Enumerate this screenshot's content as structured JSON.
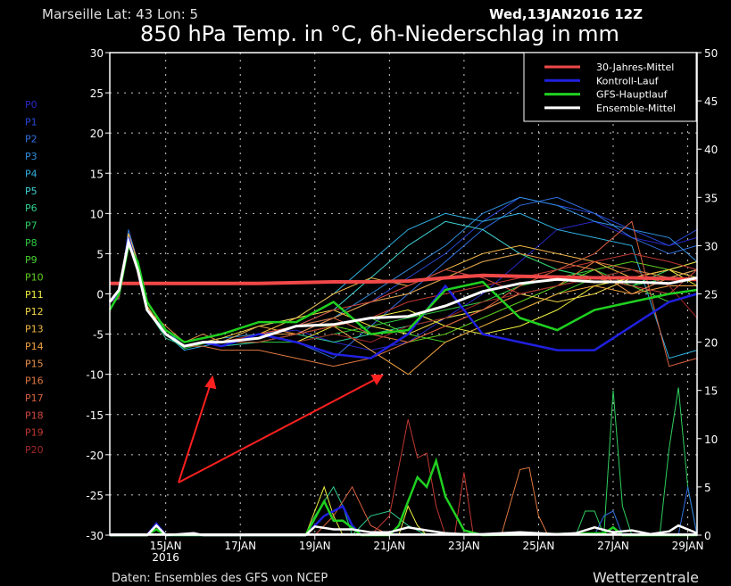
{
  "header": {
    "location": "Marseille  Lat: 43 Lon: 5",
    "run": "Wed,13JAN2016 12Z",
    "title": "850 hPa Temp. in °C, 6h-Niederschlag in mm"
  },
  "footer": {
    "source": "Daten: Ensembles des GFS von NCEP",
    "brand": "Wetterzentrale"
  },
  "legend": [
    {
      "label": "30-Jahres-Mittel",
      "color": "#f04848"
    },
    {
      "label": "Kontroll-Lauf",
      "color": "#2020e0"
    },
    {
      "label": "GFS-Hauptlauf",
      "color": "#20d020"
    },
    {
      "label": "Ensemble-Mittel",
      "color": "#ffffff"
    }
  ],
  "chart_data": {
    "type": "line",
    "title": "850 hPa Temp. in °C, 6h-Niederschlag in mm",
    "x_unit": "hours after 13JAN2016 12Z",
    "xlim": [
      0,
      378
    ],
    "ylim_left": [
      -30,
      30
    ],
    "ylim_right": [
      0,
      50
    ],
    "yticks_left": [
      -30,
      -25,
      -20,
      -15,
      -10,
      -5,
      0,
      5,
      10,
      15,
      20,
      25,
      30
    ],
    "yticks_right": [
      0,
      5,
      10,
      15,
      20,
      25,
      30,
      35,
      40,
      45,
      50
    ],
    "xticks": [
      {
        "x": 36,
        "label": "15JAN",
        "sub": "2016"
      },
      {
        "x": 84,
        "label": "17JAN"
      },
      {
        "x": 132,
        "label": "19JAN"
      },
      {
        "x": 180,
        "label": "21JAN"
      },
      {
        "x": 228,
        "label": "23JAN"
      },
      {
        "x": 276,
        "label": "25JAN"
      },
      {
        "x": 324,
        "label": "27JAN"
      },
      {
        "x": 372,
        "label": "29JAN"
      }
    ],
    "grid": true,
    "legend_position": "top-right",
    "x": [
      0,
      6,
      12,
      18,
      24,
      36,
      48,
      60,
      72,
      96,
      120,
      144,
      168,
      192,
      216,
      240,
      264,
      288,
      312,
      336,
      360,
      378
    ],
    "members": [
      {
        "name": "P0",
        "color": "#2828c8",
        "values": [
          -1,
          -0.5,
          7,
          3.5,
          -2,
          -5,
          -6.5,
          -6,
          -6,
          -5,
          -4.5,
          -6,
          -7,
          -6,
          -3,
          0,
          4,
          8,
          9,
          7,
          6,
          7
        ]
      },
      {
        "name": "P1",
        "color": "#2848d8",
        "values": [
          -1,
          -0.3,
          7.5,
          4,
          -2,
          -5,
          -6.5,
          -6,
          -6.5,
          -6,
          -5,
          -3,
          -1,
          2,
          5,
          9,
          12,
          11,
          10,
          8,
          6,
          8
        ]
      },
      {
        "name": "P2",
        "color": "#3070e0",
        "values": [
          -1,
          -0.5,
          8,
          4,
          -1.5,
          -5,
          -6.5,
          -6.2,
          -6,
          -5,
          -6,
          -8,
          -4,
          0,
          4,
          8,
          11,
          12,
          10,
          7,
          5,
          6
        ]
      },
      {
        "name": "P3",
        "color": "#3090e0",
        "values": [
          -1,
          -0.5,
          7,
          3.5,
          -2,
          -4.5,
          -6.5,
          -6,
          -5.5,
          -5,
          -4,
          -3,
          0,
          3,
          6,
          10,
          12,
          11,
          9,
          8,
          7,
          4
        ]
      },
      {
        "name": "P4",
        "color": "#30b0e0",
        "values": [
          -1,
          -0.6,
          7,
          3,
          -2,
          -5,
          -7,
          -6.5,
          -6,
          -4,
          -3,
          0,
          4,
          8,
          10,
          9,
          10,
          8,
          7,
          6,
          -8,
          -7
        ]
      },
      {
        "name": "P5",
        "color": "#40d0d0",
        "values": [
          -1,
          -0.5,
          6.5,
          3,
          -2,
          -5,
          -6.5,
          -6,
          -6,
          -5,
          -4,
          -2,
          2,
          6,
          9,
          8,
          5,
          3,
          2,
          1,
          2,
          3
        ]
      },
      {
        "name": "P6",
        "color": "#30d090",
        "values": [
          -1,
          -0.5,
          6.8,
          3,
          -2,
          -5.5,
          -6.5,
          -6,
          -6.5,
          -6,
          -5,
          -6,
          -5,
          -4,
          -3,
          -2,
          0,
          1,
          2,
          3,
          2,
          3
        ]
      },
      {
        "name": "P7",
        "color": "#30d060",
        "values": [
          -1,
          -0.5,
          7,
          3.5,
          -2,
          -5,
          -6.5,
          -6,
          -6,
          -5,
          -4,
          -3,
          -1,
          0,
          2,
          4,
          5,
          3,
          2,
          1,
          3,
          4
        ]
      },
      {
        "name": "P8",
        "color": "#30c840",
        "values": [
          -1,
          -0.5,
          6.5,
          3,
          -2,
          -5,
          -6.8,
          -6.2,
          -6,
          -6,
          -6,
          -5,
          -4,
          -3,
          -2,
          -1,
          1,
          2,
          3,
          1,
          2,
          2
        ]
      },
      {
        "name": "P9",
        "color": "#48d030",
        "values": [
          -1,
          -0.5,
          7,
          3,
          -2,
          -5,
          -6.5,
          -6,
          -6,
          -5,
          -4,
          -4,
          -3,
          -5,
          -6,
          -4,
          -2,
          0,
          2,
          1,
          -1,
          0
        ]
      },
      {
        "name": "P10",
        "color": "#60d020",
        "values": [
          -1,
          -0.5,
          7,
          3.5,
          -2,
          -5,
          -6.5,
          -6,
          -6,
          -6,
          -5,
          -4,
          -5,
          -6,
          -5,
          -3,
          -1,
          1,
          3,
          4,
          3,
          2
        ]
      },
      {
        "name": "P11",
        "color": "#f0f040",
        "values": [
          -1,
          -0.5,
          7,
          3.5,
          -2,
          -5,
          -6.5,
          -6,
          -6,
          -5,
          -6,
          -4,
          -3,
          -2,
          -4,
          -5,
          -4,
          -2,
          1,
          2,
          3,
          1
        ]
      },
      {
        "name": "P12",
        "color": "#f0d848",
        "values": [
          -1,
          -0.5,
          7.5,
          4,
          -1.5,
          -5,
          -6.5,
          -6,
          -5.5,
          -4,
          -3,
          -2,
          -4,
          -5,
          -3,
          -2,
          0,
          -1,
          0,
          2,
          3,
          4
        ]
      },
      {
        "name": "P13",
        "color": "#f0b848",
        "values": [
          -1,
          -0.5,
          7.5,
          4,
          -1.5,
          -5,
          -6.5,
          -6,
          -6,
          -5,
          -3,
          0,
          2,
          1,
          3,
          5,
          6,
          5,
          4,
          2,
          3,
          2
        ]
      },
      {
        "name": "P14",
        "color": "#f0a040",
        "values": [
          -1,
          -0.5,
          7,
          3.5,
          -2,
          -5,
          -6.5,
          -6,
          -6,
          -4,
          -5,
          -4,
          -7,
          -10,
          -6,
          -4,
          -2,
          0,
          1,
          0,
          1,
          1
        ]
      },
      {
        "name": "P15",
        "color": "#e89048",
        "values": [
          -1,
          -0.5,
          7,
          3.5,
          -2,
          -4,
          -6,
          -5,
          -6,
          -5,
          -5,
          -3,
          -1,
          0,
          2,
          4,
          5,
          4,
          3,
          0,
          2,
          3
        ]
      },
      {
        "name": "P16",
        "color": "#e07840",
        "values": [
          -1,
          -0.5,
          7,
          3.5,
          -2,
          -5,
          -6.5,
          -6.5,
          -7,
          -7,
          -8,
          -9,
          -8,
          -6,
          -4,
          -2,
          0,
          1,
          4,
          3,
          2,
          2
        ]
      },
      {
        "name": "P17",
        "color": "#d86040",
        "values": [
          -1,
          -0.5,
          7,
          3.5,
          -2,
          -5,
          -6.5,
          -6,
          -6,
          -5,
          -4,
          -3,
          -5,
          -6,
          -4,
          -2,
          1,
          3,
          5,
          9,
          -9,
          -8
        ]
      },
      {
        "name": "P18",
        "color": "#d04840",
        "values": [
          -1,
          -0.5,
          6.5,
          3,
          -2,
          -5,
          -6.5,
          -6,
          -6,
          -5,
          -4,
          -2,
          -1,
          1,
          3,
          2,
          0,
          1,
          2,
          1,
          0,
          3
        ]
      },
      {
        "name": "P19",
        "color": "#c03830",
        "values": [
          -1,
          -0.5,
          6.5,
          3,
          -2,
          -5,
          -6.5,
          -6,
          -6,
          -6,
          -5,
          -4,
          -3,
          -1,
          0,
          1,
          2,
          3,
          4,
          5,
          4,
          3
        ]
      },
      {
        "name": "P20",
        "color": "#a02828",
        "values": [
          -1,
          -0.5,
          6.5,
          3,
          -2,
          -5,
          -6.5,
          -6,
          -6,
          -5,
          -6,
          -5,
          -6,
          -4,
          -3,
          -1,
          0,
          1,
          2,
          3,
          1,
          -3
        ]
      }
    ],
    "climatology": {
      "name": "30-Jahres-Mittel",
      "values": [
        1.3,
        1.3,
        1.3,
        1.3,
        1.3,
        1.3,
        1.3,
        1.3,
        1.3,
        1.3,
        1.4,
        1.5,
        1.5,
        1.6,
        2.0,
        2.3,
        2.2,
        2.1,
        2.0,
        2.0,
        1.9,
        1.8
      ]
    },
    "control": {
      "name": "Kontroll-Lauf",
      "values": [
        -1,
        0,
        7,
        3,
        -2,
        -5,
        -6.5,
        -6,
        -6.5,
        -5,
        -6,
        -7.5,
        -8,
        -5,
        1,
        -5,
        -6,
        -7,
        -7,
        -4,
        -1,
        0
      ]
    },
    "gfs": {
      "name": "GFS-Hauptlauf",
      "values": [
        -2,
        0,
        6,
        4,
        -1,
        -4.5,
        -6,
        -5.5,
        -5,
        -3.5,
        -3.5,
        -1,
        -5,
        -4.5,
        0.5,
        1.5,
        -3,
        -4.5,
        -2,
        -1,
        0,
        0.5
      ]
    },
    "mean": {
      "name": "Ensemble-Mittel",
      "values": [
        -1,
        0.5,
        6.5,
        3,
        -2,
        -5,
        -6.5,
        -6,
        -6,
        -5.5,
        -4,
        -3.8,
        -3,
        -2.8,
        -1.5,
        0.3,
        1.3,
        1.8,
        1.5,
        1.5,
        1.3,
        2
      ]
    },
    "precip": [
      {
        "name": "P6",
        "color": "#30d090",
        "points": [
          [
            126,
            0
          ],
          [
            132,
            2
          ],
          [
            144,
            5
          ],
          [
            150,
            3
          ],
          [
            156,
            0
          ],
          [
            168,
            2
          ],
          [
            180,
            2.5
          ],
          [
            192,
            1
          ],
          [
            204,
            0
          ]
        ]
      },
      {
        "name": "P11",
        "color": "#f0f040",
        "points": [
          [
            126,
            0
          ],
          [
            138,
            5
          ],
          [
            144,
            2
          ],
          [
            150,
            0
          ],
          [
            186,
            0
          ],
          [
            192,
            3
          ],
          [
            198,
            1
          ],
          [
            204,
            0
          ]
        ]
      },
      {
        "name": "P17",
        "color": "#d86040",
        "points": [
          [
            132,
            0
          ],
          [
            144,
            2
          ],
          [
            156,
            5
          ],
          [
            168,
            1
          ],
          [
            180,
            0
          ]
        ]
      },
      {
        "name": "P19",
        "color": "#c03830",
        "points": [
          [
            168,
            0
          ],
          [
            180,
            2
          ],
          [
            192,
            12
          ],
          [
            198,
            8
          ],
          [
            204,
            8.5
          ],
          [
            210,
            3
          ],
          [
            216,
            0
          ],
          [
            222,
            0
          ],
          [
            228,
            6.5
          ],
          [
            234,
            0
          ]
        ]
      },
      {
        "name": "P16",
        "color": "#e07840",
        "points": [
          [
            252,
            0
          ],
          [
            264,
            6.8
          ],
          [
            270,
            7
          ],
          [
            276,
            2
          ],
          [
            282,
            0
          ]
        ]
      },
      {
        "name": "P7",
        "color": "#30d060",
        "points": [
          [
            300,
            0
          ],
          [
            306,
            2.5
          ],
          [
            312,
            2.5
          ],
          [
            318,
            0
          ],
          [
            324,
            15
          ],
          [
            330,
            3
          ],
          [
            336,
            0
          ],
          [
            354,
            0
          ],
          [
            360,
            9
          ],
          [
            366,
            15.3
          ],
          [
            372,
            5
          ],
          [
            378,
            0
          ]
        ]
      },
      {
        "name": "P2",
        "color": "#3070e0",
        "points": [
          [
            312,
            0
          ],
          [
            318,
            2
          ],
          [
            324,
            2.5
          ],
          [
            330,
            0
          ],
          [
            366,
            0
          ],
          [
            372,
            5
          ],
          [
            378,
            0
          ]
        ]
      },
      {
        "name": "Kontroll-Lauf",
        "color": "#2020e0",
        "width": 2.5,
        "points": [
          [
            24,
            0
          ],
          [
            30,
            1.2
          ],
          [
            36,
            0
          ],
          [
            126,
            0
          ],
          [
            138,
            2
          ],
          [
            144,
            2.5
          ],
          [
            150,
            3
          ],
          [
            156,
            1
          ],
          [
            162,
            0
          ]
        ]
      },
      {
        "name": "GFS-Hauptlauf",
        "color": "#20d020",
        "width": 2.5,
        "points": [
          [
            0,
            0
          ],
          [
            24,
            0
          ],
          [
            30,
            0.6
          ],
          [
            36,
            0
          ],
          [
            126,
            0
          ],
          [
            138,
            3.5
          ],
          [
            144,
            1.5
          ],
          [
            150,
            1.5
          ],
          [
            162,
            0
          ],
          [
            180,
            0
          ],
          [
            186,
            1
          ],
          [
            198,
            6
          ],
          [
            204,
            5
          ],
          [
            210,
            7.7
          ],
          [
            216,
            4
          ],
          [
            228,
            0.5
          ],
          [
            240,
            0
          ],
          [
            318,
            0.2
          ],
          [
            324,
            0.8
          ],
          [
            330,
            0
          ],
          [
            378,
            0
          ]
        ]
      },
      {
        "name": "Ensemble-Mittel",
        "color": "#ffffff",
        "width": 2.5,
        "points": [
          [
            0,
            0
          ],
          [
            24,
            0
          ],
          [
            30,
            1
          ],
          [
            36,
            0
          ],
          [
            54,
            0.2
          ],
          [
            60,
            0
          ],
          [
            126,
            0
          ],
          [
            132,
            0.9
          ],
          [
            144,
            0.6
          ],
          [
            156,
            0.6
          ],
          [
            168,
            0.3
          ],
          [
            180,
            0.3
          ],
          [
            192,
            0.8
          ],
          [
            204,
            0.5
          ],
          [
            216,
            0.2
          ],
          [
            228,
            0.1
          ],
          [
            240,
            0.1
          ],
          [
            264,
            0.3
          ],
          [
            288,
            0.1
          ],
          [
            300,
            0.2
          ],
          [
            312,
            0.8
          ],
          [
            324,
            0.3
          ],
          [
            336,
            0.5
          ],
          [
            348,
            0.1
          ],
          [
            360,
            0.4
          ],
          [
            366,
            1.0
          ],
          [
            378,
            0.2
          ]
        ]
      }
    ]
  }
}
